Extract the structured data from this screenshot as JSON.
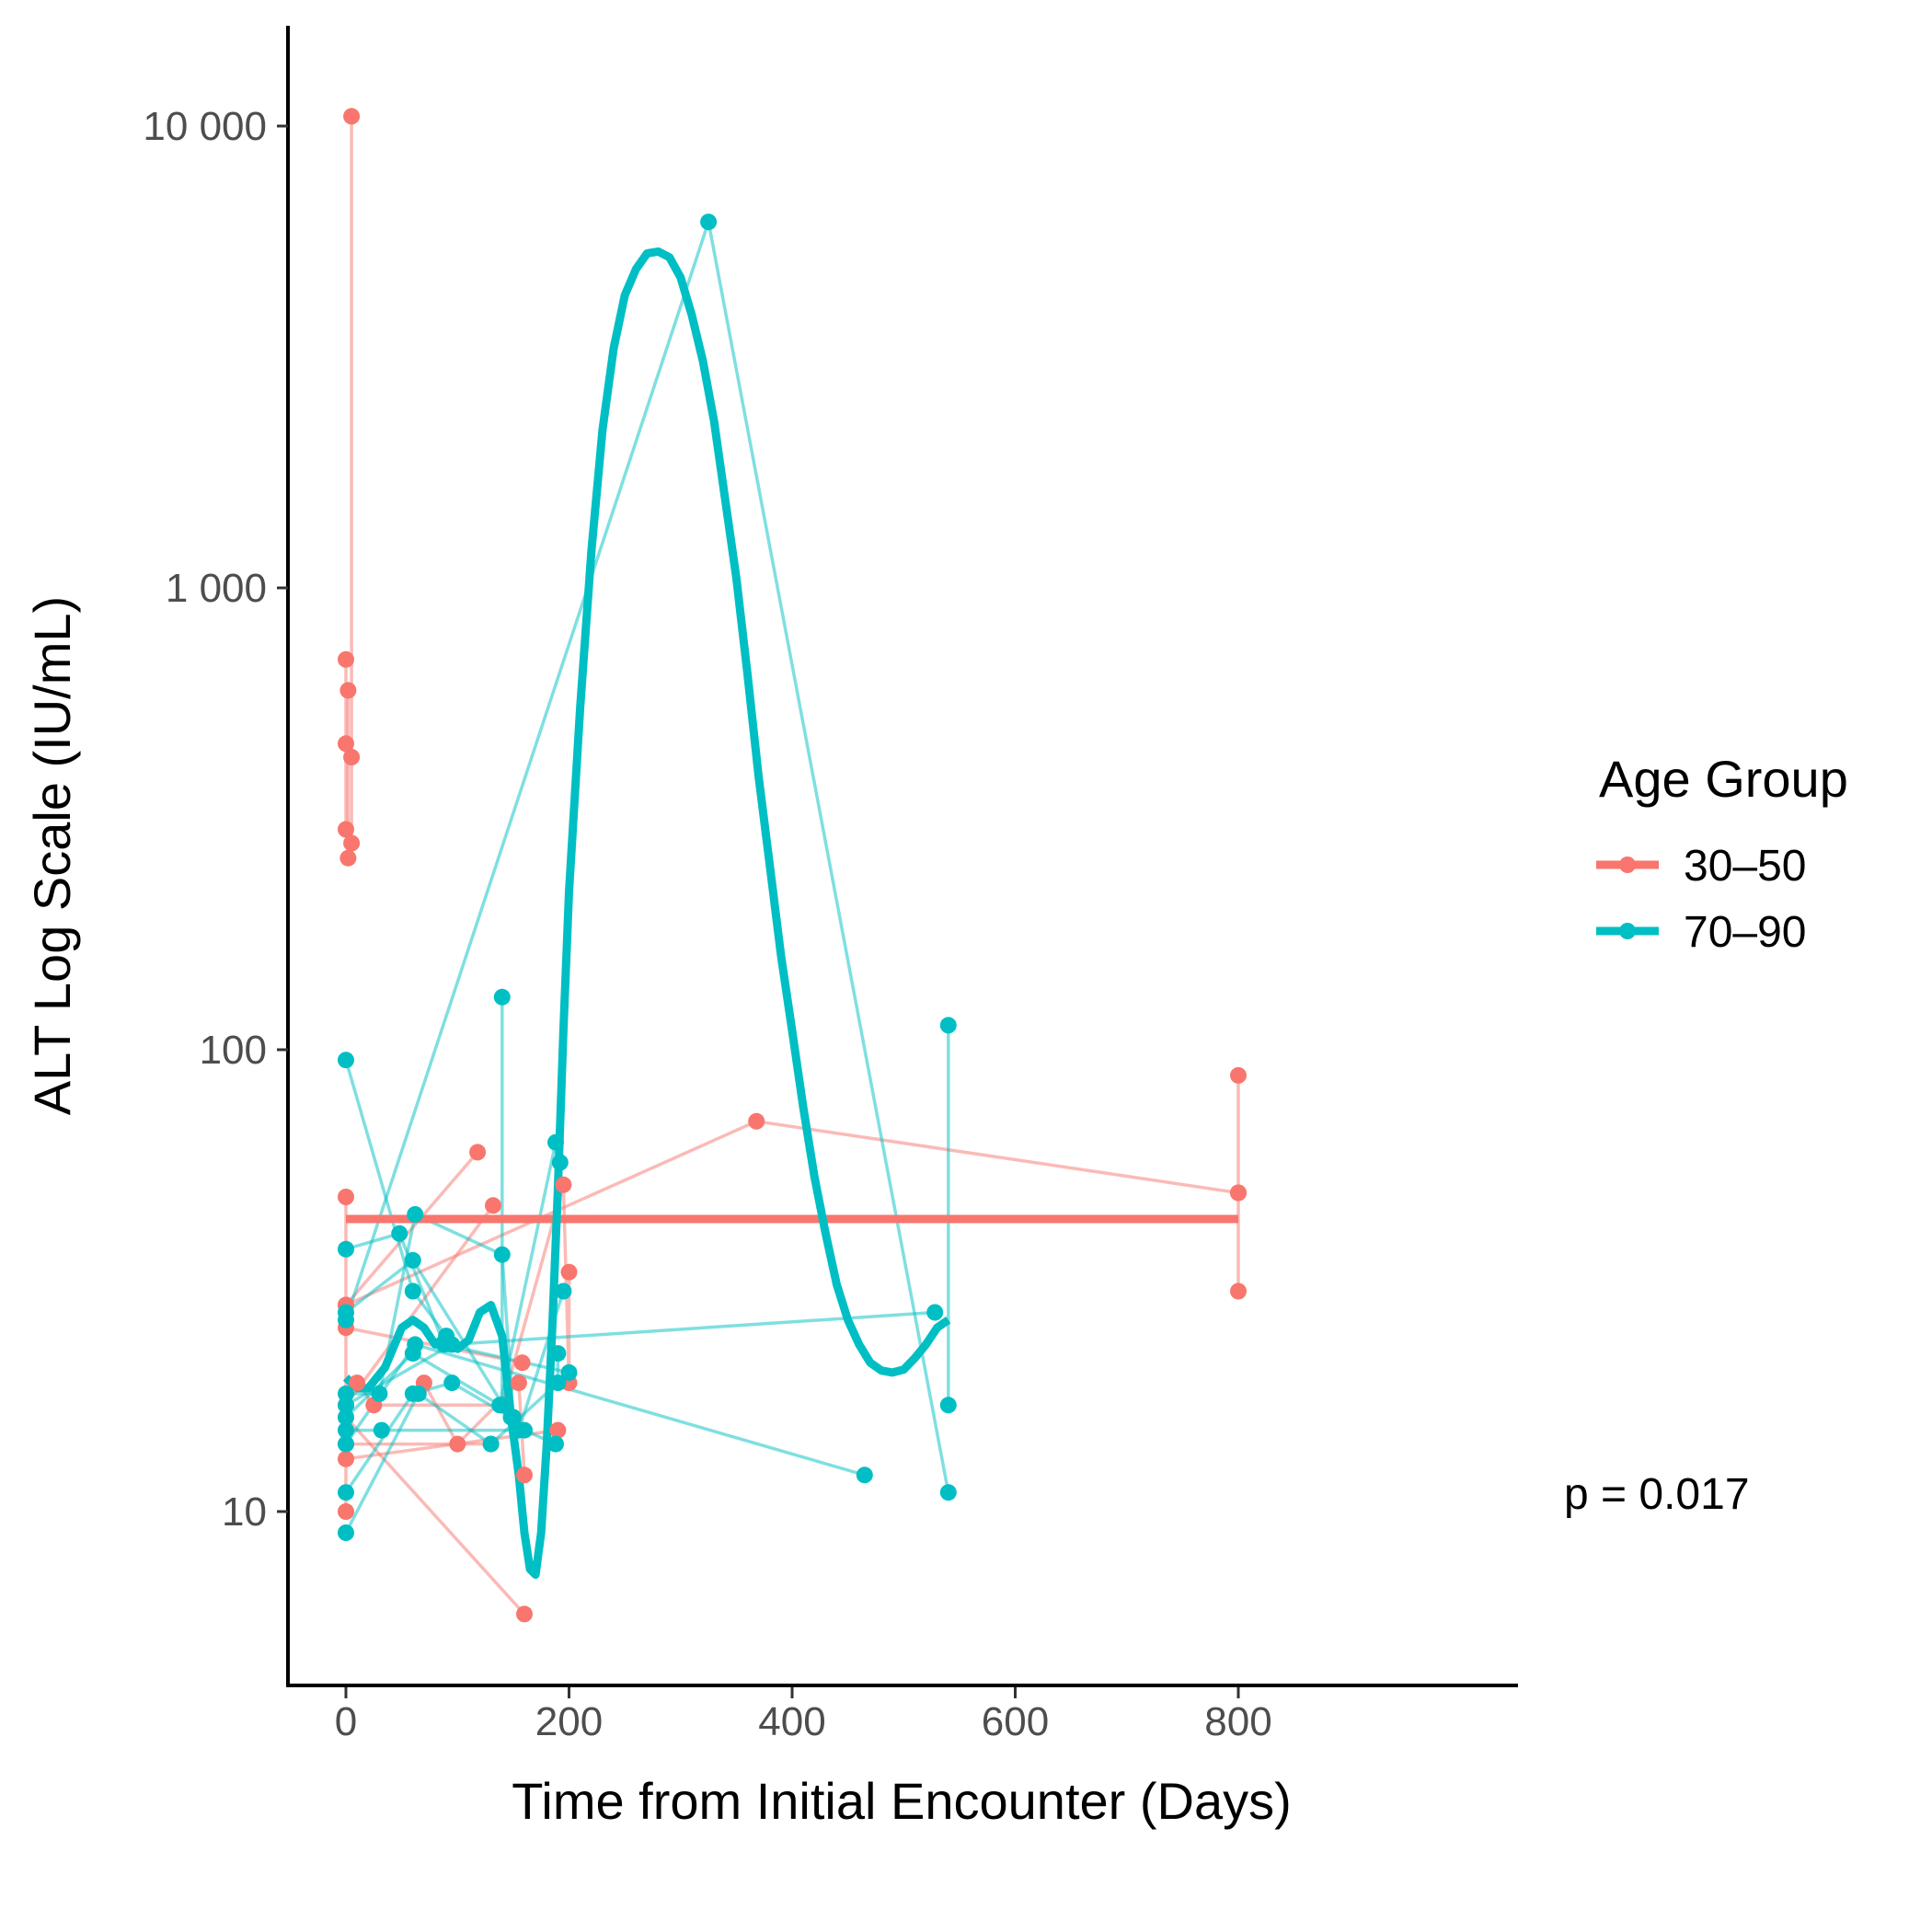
{
  "chart_data": {
    "type": "line",
    "title": "",
    "xlabel": "Time from Initial Encounter (Days)",
    "ylabel": "ALT Log Scale (IU/mL)",
    "x_scale": "linear",
    "y_scale": "log10",
    "xlim": [
      -40,
      840
    ],
    "ylim": [
      4.3,
      14500
    ],
    "x_ticks": [
      0,
      200,
      400,
      600,
      800
    ],
    "x_tick_labels": [
      "0",
      "200",
      "400",
      "600",
      "800"
    ],
    "y_ticks": [
      10,
      100,
      1000,
      10000
    ],
    "y_tick_labels": [
      "10",
      "100",
      "1 000",
      "10 000"
    ],
    "grid": false,
    "legend": {
      "title": "Age Group",
      "placement": "right",
      "entries": [
        {
          "label": "30–50",
          "color": "#F8766D"
        },
        {
          "label": "70–90",
          "color": "#00BFC4"
        }
      ]
    },
    "annotation": "p = 0.017",
    "series": [
      {
        "name": "30–50",
        "color": "#F8766D",
        "patients": [
          [
            [
              5,
              10500
            ],
            [
              5,
              280
            ]
          ],
          [
            [
              0,
              700
            ],
            [
              0,
              300
            ]
          ],
          [
            [
              2,
              600
            ],
            [
              2,
              260
            ]
          ],
          [
            [
              0,
              460
            ],
            [
              5,
              430
            ]
          ],
          [
            [
              0,
              48
            ],
            [
              0,
              10
            ]
          ],
          [
            [
              0,
              28
            ],
            [
              118,
              60
            ]
          ],
          [
            [
              0,
              25
            ],
            [
              158,
              21
            ]
          ],
          [
            [
              0,
              17
            ],
            [
              132,
              46
            ]
          ],
          [
            [
              0,
              16
            ],
            [
              160,
              6
            ]
          ],
          [
            [
              0,
              13
            ],
            [
              190,
              15
            ]
          ],
          [
            [
              0,
              28
            ],
            [
              368,
              70
            ],
            [
              800,
              49
            ],
            [
              800,
              30
            ]
          ],
          [
            [
              10,
              19
            ],
            [
              25,
              17
            ],
            [
              140,
              17
            ],
            [
              195,
              51
            ],
            [
              200,
              19
            ],
            [
              200,
              33
            ]
          ],
          [
            [
              70,
              19
            ],
            [
              100,
              14
            ],
            [
              155,
              19
            ],
            [
              160,
              12
            ]
          ],
          [
            [
              0,
              14
            ],
            [
              130,
              14
            ]
          ],
          [
            [
              800,
              88
            ],
            [
              800,
              49
            ]
          ]
        ]
      },
      {
        "name": "70–90",
        "color": "#00BFC4",
        "patients": [
          [
            [
              0,
              95
            ],
            [
              60,
              30
            ],
            [
              90,
              24
            ]
          ],
          [
            [
              0,
              37
            ],
            [
              48,
              40
            ],
            [
              88,
              23
            ],
            [
              200,
              20
            ]
          ],
          [
            [
              0,
              27
            ],
            [
              60,
              35
            ],
            [
              155,
              15
            ],
            [
              195,
              30
            ]
          ],
          [
            [
              0,
              26
            ],
            [
              325,
              6200
            ],
            [
              540,
              11
            ]
          ],
          [
            [
              0,
              18
            ],
            [
              30,
              18
            ],
            [
              62,
              44
            ],
            [
              140,
              36
            ],
            [
              150,
              16
            ]
          ],
          [
            [
              0,
              16
            ],
            [
              60,
              22
            ],
            [
              138,
              17
            ],
            [
              188,
              63
            ],
            [
              192,
              57
            ]
          ],
          [
            [
              0,
              15
            ],
            [
              32,
              15
            ],
            [
              160,
              15
            ],
            [
              188,
              14
            ]
          ],
          [
            [
              0,
              14
            ],
            [
              62,
              23
            ],
            [
              465,
              12
            ]
          ],
          [
            [
              0,
              11
            ],
            [
              60,
              18
            ],
            [
              95,
              19
            ],
            [
              148,
              16
            ]
          ],
          [
            [
              0,
              9
            ],
            [
              65,
              18
            ],
            [
              130,
              14
            ],
            [
              190,
              19
            ],
            [
              190,
              22
            ]
          ],
          [
            [
              140,
              130
            ],
            [
              140,
              17
            ]
          ],
          [
            [
              540,
              113
            ],
            [
              540,
              17
            ]
          ],
          [
            [
              0,
              17
            ],
            [
              95,
              23
            ],
            [
              528,
              27
            ]
          ]
        ]
      }
    ],
    "trend_lines": [
      {
        "name": "30–50",
        "color": "#F8766D",
        "points": [
          [
            0,
            43
          ],
          [
            800,
            43
          ]
        ]
      },
      {
        "name": "70–90",
        "color": "#00BFC4",
        "points": [
          [
            0,
            19.5
          ],
          [
            10,
            18.5
          ],
          [
            20,
            18.5
          ],
          [
            35,
            20.5
          ],
          [
            50,
            25
          ],
          [
            60,
            26
          ],
          [
            70,
            25
          ],
          [
            80,
            23
          ],
          [
            90,
            24
          ],
          [
            100,
            22.5
          ],
          [
            110,
            23.5
          ],
          [
            120,
            27
          ],
          [
            130,
            28
          ],
          [
            140,
            24
          ],
          [
            148,
            16
          ],
          [
            155,
            12
          ],
          [
            160,
            9
          ],
          [
            165,
            7.5
          ],
          [
            170,
            7.3
          ],
          [
            175,
            9
          ],
          [
            180,
            14
          ],
          [
            185,
            25
          ],
          [
            190,
            50
          ],
          [
            195,
            110
          ],
          [
            200,
            220
          ],
          [
            210,
            550
          ],
          [
            220,
            1200
          ],
          [
            230,
            2200
          ],
          [
            240,
            3300
          ],
          [
            250,
            4300
          ],
          [
            260,
            4900
          ],
          [
            270,
            5300
          ],
          [
            280,
            5350
          ],
          [
            290,
            5200
          ],
          [
            300,
            4700
          ],
          [
            310,
            3900
          ],
          [
            320,
            3100
          ],
          [
            330,
            2300
          ],
          [
            340,
            1550
          ],
          [
            350,
            1050
          ],
          [
            360,
            650
          ],
          [
            370,
            390
          ],
          [
            380,
            250
          ],
          [
            390,
            160
          ],
          [
            400,
            110
          ],
          [
            410,
            75
          ],
          [
            420,
            53
          ],
          [
            430,
            40
          ],
          [
            440,
            31
          ],
          [
            450,
            26
          ],
          [
            460,
            23
          ],
          [
            470,
            21
          ],
          [
            480,
            20.2
          ],
          [
            490,
            20
          ],
          [
            500,
            20.3
          ],
          [
            510,
            21.5
          ],
          [
            520,
            23
          ],
          [
            530,
            25
          ],
          [
            540,
            26
          ]
        ]
      }
    ]
  }
}
